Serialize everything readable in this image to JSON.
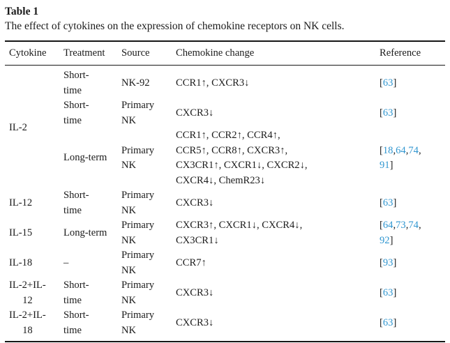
{
  "colors": {
    "text": "#1b1b1b",
    "rule": "#161616",
    "reference_link": "#3096d0"
  },
  "table": {
    "label": "Table 1",
    "caption": "The effect of cytokines on the expression of chemokine receptors on NK cells.",
    "columns": [
      "Cytokine",
      "Treatment",
      "Source",
      "Chemokine change",
      "Reference"
    ],
    "groups": [
      {
        "cytokine": "IL-2",
        "rows": [
          {
            "treatment": "Short-\ntime",
            "source": "NK-92",
            "chemokine": "CCR1↑, CXCR3↓",
            "refs": [
              [
                "63"
              ]
            ]
          },
          {
            "treatment": "Short-\ntime",
            "source": "Primary\nNK",
            "chemokine": "CXCR3↓",
            "refs": [
              [
                "63"
              ]
            ]
          },
          {
            "treatment": "Long-term",
            "source": "Primary\nNK",
            "chemokine": "CCR1↑, CCR2↑, CCR4↑,\nCCR5↑, CCR8↑, CXCR3↑,\nCX3CR1↑, CXCR1↓, CXCR2↓,\nCXCR4↓, ChemR23↓",
            "refs": [
              [
                "18",
                "64",
                "74"
              ],
              [
                "91"
              ]
            ]
          }
        ]
      },
      {
        "cytokine": "IL-12",
        "rows": [
          {
            "treatment": "Short-\ntime",
            "source": "Primary\nNK",
            "chemokine": "CXCR3↓",
            "refs": [
              [
                "63"
              ]
            ]
          }
        ]
      },
      {
        "cytokine": "IL-15",
        "rows": [
          {
            "treatment": "Long-term",
            "source": "Primary\nNK",
            "chemokine": "CXCR3↑, CXCR1↓, CXCR4↓,\nCX3CR1↓",
            "refs": [
              [
                "64",
                "73",
                "74"
              ],
              [
                "92"
              ]
            ]
          }
        ]
      },
      {
        "cytokine": "IL-18",
        "rows": [
          {
            "treatment": "–",
            "source": "Primary\nNK",
            "chemokine": "CCR7↑",
            "refs": [
              [
                "93"
              ]
            ]
          }
        ]
      },
      {
        "cytokine": "IL-2+IL-\n12",
        "rows": [
          {
            "treatment": "Short-\ntime",
            "source": "Primary\nNK",
            "chemokine": "CXCR3↓",
            "refs": [
              [
                "63"
              ]
            ]
          }
        ]
      },
      {
        "cytokine": "IL-2+IL-\n18",
        "rows": [
          {
            "treatment": "Short-\ntime",
            "source": "Primary\nNK",
            "chemokine": "CXCR3↓",
            "refs": [
              [
                "63"
              ]
            ]
          }
        ]
      }
    ]
  }
}
